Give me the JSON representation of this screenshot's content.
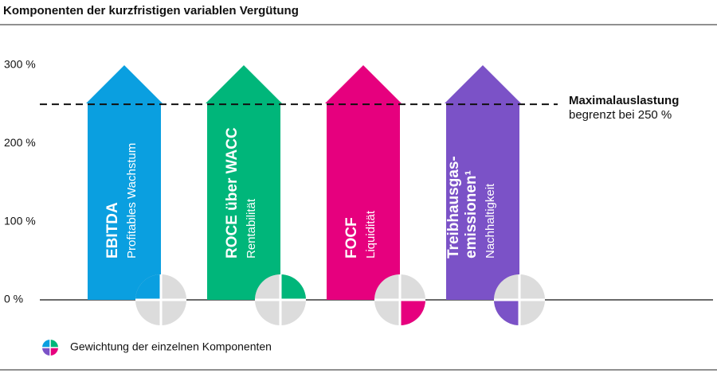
{
  "chart_data": {
    "type": "arrow",
    "title": "Komponenten der kurzfristigen variablen Vergütung",
    "ylim": [
      0,
      300
    ],
    "yticks": [
      {
        "value": 0,
        "label": "0 %"
      },
      {
        "value": 100,
        "label": "100 %"
      },
      {
        "value": 200,
        "label": "200 %"
      },
      {
        "value": 300,
        "label": "300 %"
      }
    ],
    "items": [
      {
        "name": [
          "EBITDA"
        ],
        "sub": "Profitables Wachstum",
        "color": "#0a9fe0",
        "value": 300,
        "weight": 25
      },
      {
        "name": [
          "ROCE über WACC"
        ],
        "sub": "Rentabilität",
        "color": "#00b67a",
        "value": 300,
        "weight": 25
      },
      {
        "name": [
          "FOCF"
        ],
        "sub": "Liquidität",
        "color": "#e6007e",
        "value": 300,
        "weight": 25
      },
      {
        "name": [
          "Treibhausgas-",
          "emissionen¹"
        ],
        "sub": "Nachhaltigkeit",
        "color": "#7b52c7",
        "value": 300,
        "weight": 25
      }
    ],
    "cap": 250,
    "cap_title": "Maximalauslastung",
    "cap_text": "begrenzt bei 250 %",
    "legend": "Gewichtung der einzelnen Komponenten"
  }
}
